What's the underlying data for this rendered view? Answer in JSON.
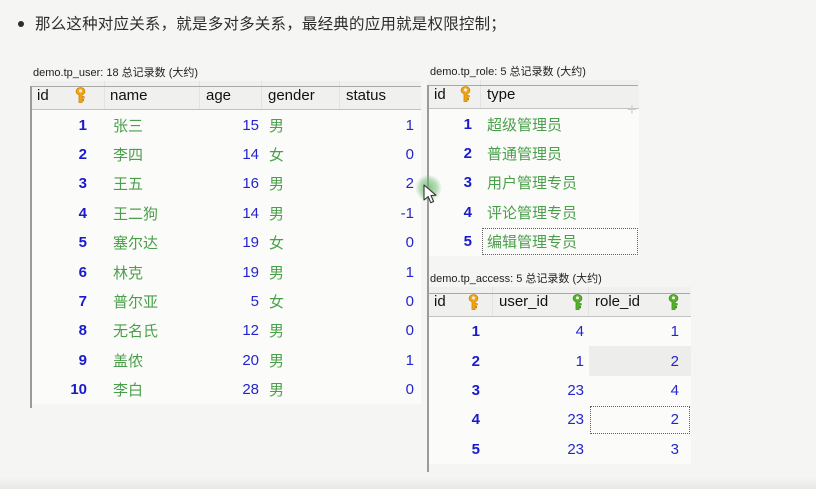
{
  "bullet": {
    "text": "那么这种对应关系，就是多对多关系，最经典的应用就是权限控制；"
  },
  "colors": {
    "id_blue": "#1a1acc",
    "value_blue": "#2525cd",
    "text_green": "#4aa04a",
    "pk_key": "#f2a41b",
    "pk_key_stroke": "#cd8307",
    "index_key": "#55b22c",
    "index_key_stroke": "#3d8d1c"
  },
  "icons": {
    "pk_key": "pk-key-icon",
    "index_key": "index-key-icon",
    "plus": "plus-icon",
    "cursor": "mouse-cursor"
  },
  "plus_hint": "+",
  "tables": {
    "tp_user": {
      "title": "demo.tp_user: 18 总记录数 (大约)",
      "columns": [
        {
          "label": "id",
          "key": "pk",
          "kind": "num"
        },
        {
          "label": "name",
          "kind": "txt"
        },
        {
          "label": "age",
          "kind": "num"
        },
        {
          "label": "gender",
          "kind": "txt"
        },
        {
          "label": "status",
          "kind": "num"
        }
      ],
      "rows": [
        [
          "1",
          "张三",
          "15",
          "男",
          "1"
        ],
        [
          "2",
          "李四",
          "14",
          "女",
          "0"
        ],
        [
          "3",
          "王五",
          "16",
          "男",
          "2"
        ],
        [
          "4",
          "王二狗",
          "14",
          "男",
          "-1"
        ],
        [
          "5",
          "塞尔达",
          "19",
          "女",
          "0"
        ],
        [
          "6",
          "林克",
          "19",
          "男",
          "1"
        ],
        [
          "7",
          "普尔亚",
          "5",
          "女",
          "0"
        ],
        [
          "8",
          "无名氏",
          "12",
          "男",
          "0"
        ],
        [
          "9",
          "盖侬",
          "20",
          "男",
          "1"
        ],
        [
          "10",
          "李白",
          "28",
          "男",
          "0"
        ]
      ]
    },
    "tp_role": {
      "title": "demo.tp_role: 5 总记录数 (大约)",
      "columns": [
        {
          "label": "id",
          "key": "pk",
          "kind": "num"
        },
        {
          "label": "type",
          "kind": "txt"
        }
      ],
      "rows": [
        [
          "1",
          "超级管理员"
        ],
        [
          "2",
          "普通管理员"
        ],
        [
          "3",
          "用户管理专员"
        ],
        [
          "4",
          "评论管理专员"
        ],
        [
          "5",
          "编辑管理专员"
        ]
      ],
      "selected_cell": {
        "row": 4,
        "col": 1
      }
    },
    "tp_access": {
      "title": "demo.tp_access: 5 总记录数 (大约)",
      "columns": [
        {
          "label": "id",
          "key": "pk",
          "kind": "num"
        },
        {
          "label": "user_id",
          "key": "index",
          "kind": "num"
        },
        {
          "label": "role_id",
          "key": "index",
          "kind": "num"
        }
      ],
      "rows": [
        [
          "1",
          "4",
          "1"
        ],
        [
          "2",
          "1",
          "2"
        ],
        [
          "3",
          "23",
          "4"
        ],
        [
          "4",
          "23",
          "2"
        ],
        [
          "5",
          "23",
          "3"
        ]
      ],
      "selected_cell": {
        "row": 3,
        "col": 2
      },
      "hovered_cell": {
        "row": 1,
        "col": 2
      }
    }
  }
}
